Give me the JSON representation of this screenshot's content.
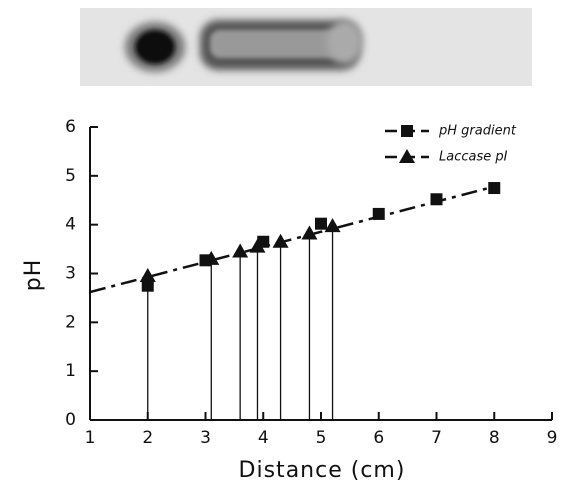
{
  "chart_data": {
    "type": "scatter",
    "xlabel": "Distance (cm)",
    "ylabel": "pH",
    "xlim": [
      1,
      9
    ],
    "ylim": [
      0,
      6
    ],
    "xticks": [
      1,
      2,
      3,
      4,
      5,
      6,
      7,
      8,
      9
    ],
    "yticks": [
      0,
      1,
      2,
      3,
      4,
      5,
      6
    ],
    "fit_line": {
      "x": [
        1,
        8
      ],
      "y": [
        2.62,
        4.78
      ]
    },
    "legend": "upper right",
    "series": [
      {
        "name": "pH gradient",
        "marker": "square",
        "color": "#111",
        "x": [
          2,
          3,
          4,
          5,
          6,
          7,
          8
        ],
        "values": [
          2.75,
          3.27,
          3.65,
          4.02,
          4.22,
          4.52,
          4.75
        ]
      },
      {
        "name": "Laccase pI",
        "marker": "triangle",
        "color": "#111",
        "droplines": true,
        "x": [
          2,
          3.1,
          3.6,
          3.9,
          4.3,
          4.8,
          5.2
        ],
        "values": [
          2.95,
          3.3,
          3.45,
          3.55,
          3.65,
          3.82,
          3.97
        ]
      }
    ]
  }
}
